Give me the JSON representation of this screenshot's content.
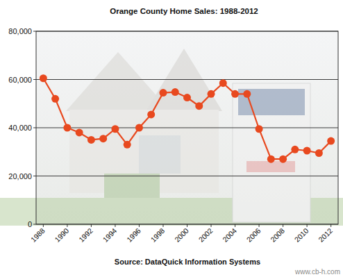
{
  "chart_data": {
    "type": "line",
    "title": "Orange County Home Sales: 1988-2012",
    "x": [
      1988,
      1989,
      1990,
      1991,
      1992,
      1993,
      1994,
      1995,
      1996,
      1997,
      1998,
      1999,
      2000,
      2001,
      2002,
      2003,
      2004,
      2005,
      2006,
      2007,
      2008,
      2009,
      2010,
      2011,
      2012
    ],
    "values": [
      60500,
      52000,
      40000,
      38000,
      35000,
      35500,
      39500,
      33000,
      40000,
      45500,
      54500,
      54800,
      52500,
      49000,
      54000,
      58500,
      54000,
      54000,
      39500,
      27000,
      27000,
      31000,
      30500,
      29500,
      34500
    ],
    "color": "#e8491f",
    "marker": "circle",
    "line_style": "solid",
    "grid": true,
    "xlim": [
      1987.4,
      2012.6
    ],
    "xticks": [
      1988,
      1990,
      1992,
      1994,
      1996,
      1998,
      2000,
      2002,
      2004,
      2006,
      2008,
      2010,
      2012
    ],
    "ylim": [
      0,
      80000
    ],
    "yticks": [
      0,
      {
        "value": 20000,
        "label": "20,000"
      },
      {
        "value": 40000,
        "label": "40,000"
      },
      {
        "value": 60000,
        "label": "60,000"
      },
      {
        "value": 80000,
        "label": "80,000"
      }
    ],
    "annotations": [
      "Source: DataQuick Information Systems",
      "www.cb-h.com"
    ]
  }
}
